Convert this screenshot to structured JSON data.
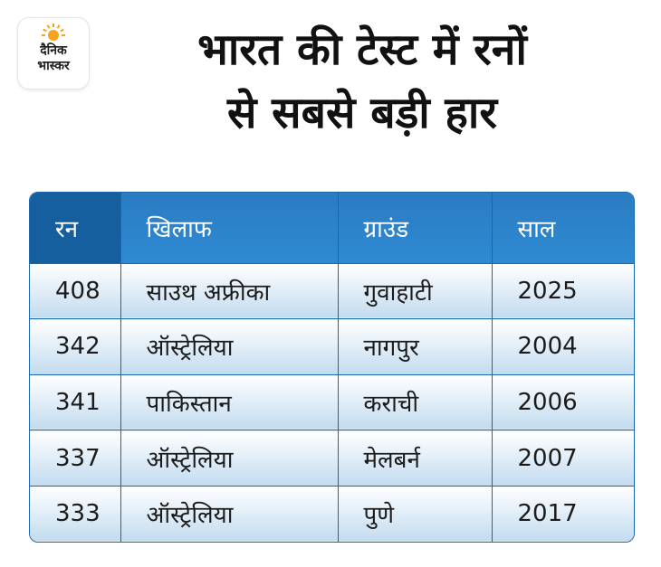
{
  "logo": {
    "line1": "दैनिक",
    "line2": "भास्कर"
  },
  "title": {
    "line1": "भारत की टेस्ट में रनों",
    "line2": "से सबसे बड़ी हार"
  },
  "table": {
    "headers": [
      "रन",
      "खिलाफ",
      "ग्राउंड",
      "साल"
    ],
    "rows": [
      [
        "408",
        "साउथ अफ्रीका",
        "गुवाहाटी",
        "2025"
      ],
      [
        "342",
        "ऑस्ट्रेलिया",
        "नागपुर",
        "2004"
      ],
      [
        "341",
        "पाकिस्तान",
        "कराची",
        "2006"
      ],
      [
        "337",
        "ऑस्ट्रेलिया",
        "मेलबर्न",
        "2007"
      ],
      [
        "333",
        "ऑस्ट्रेलिया",
        "पुणे",
        "2017"
      ]
    ]
  },
  "colors": {
    "header_blue": "#2f8ad2",
    "header_dark_blue": "#165f9f",
    "row_gradient_bottom": "#c2dbef",
    "logo_sun": "#f6a21a"
  }
}
